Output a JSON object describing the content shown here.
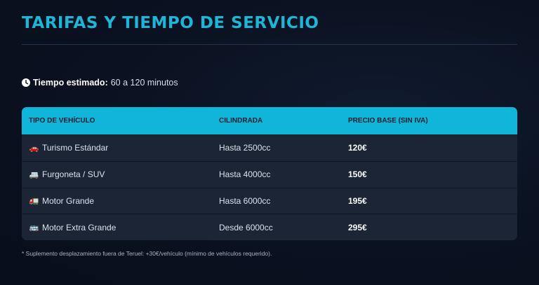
{
  "header": {
    "title": "TARIFAS Y TIEMPO DE SERVICIO"
  },
  "time": {
    "icon": "clock-icon",
    "label": "Tiempo estimado:",
    "value": "60 a 120 minutos"
  },
  "table": {
    "columns": [
      "TIPO DE VEHÍCULO",
      "CILINDRADA",
      "PRECIO BASE (SIN IVA)"
    ],
    "rows": [
      {
        "icon": "car-icon",
        "glyph": "🚗",
        "vehicle": "Turismo Estándar",
        "cc": "Hasta 2500cc",
        "price": "120€"
      },
      {
        "icon": "van-icon",
        "glyph": "🚐",
        "vehicle": "Furgoneta / SUV",
        "cc": "Hasta 4000cc",
        "price": "150€"
      },
      {
        "icon": "truck-icon",
        "glyph": "🚛",
        "vehicle": "Motor Grande",
        "cc": "Hasta 6000cc",
        "price": "195€"
      },
      {
        "icon": "bus-icon",
        "glyph": "🚌",
        "vehicle": "Motor Extra Grande",
        "cc": "Desde 6000cc",
        "price": "295€"
      }
    ]
  },
  "note": "* Suplemento desplazamiento fuera de Teruel: +30€/vehículo (mínimo de vehículos requerido).",
  "colors": {
    "accent": "#1fb5d6",
    "header_bg": "#10b6da",
    "background": "#0a1120",
    "row_bg": "#1b2536"
  }
}
